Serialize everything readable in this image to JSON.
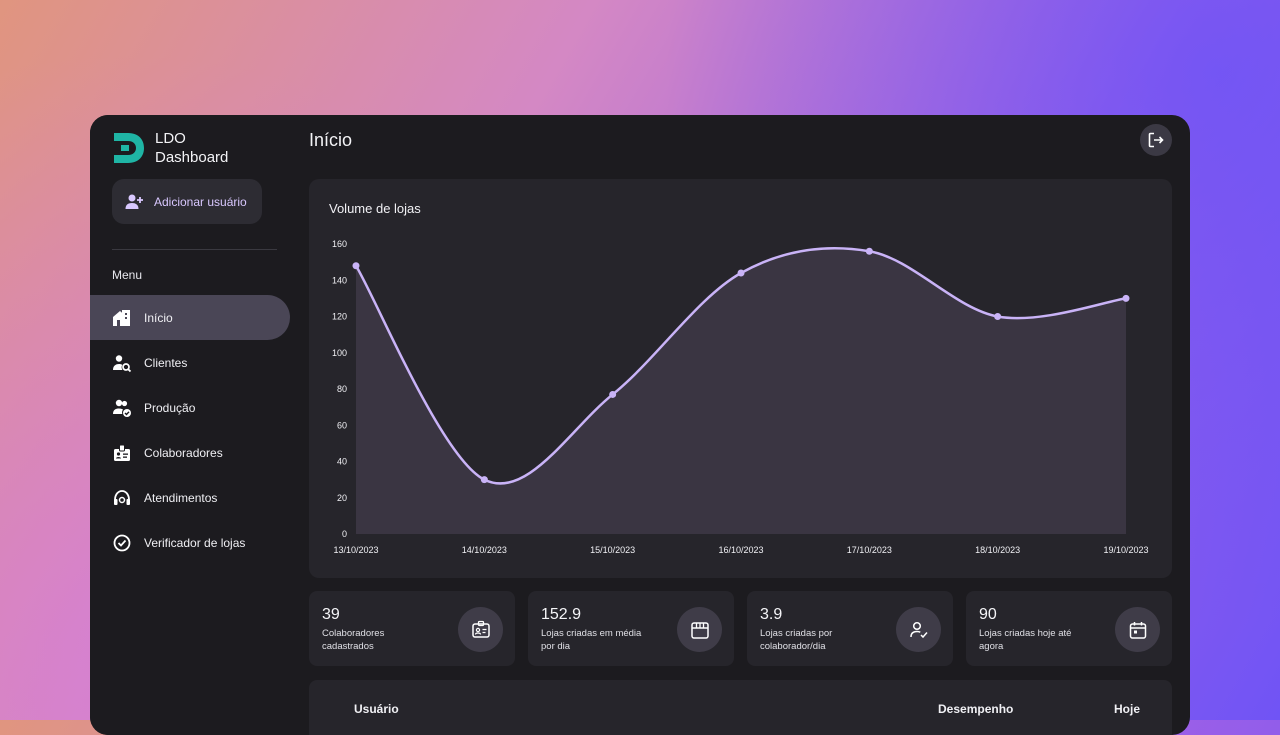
{
  "brand": {
    "line1": "LDO",
    "line2": "Dashboard"
  },
  "sidebar": {
    "add_user_label": "Adicionar usuário",
    "menu_title": "Menu",
    "items": [
      {
        "label": "Início",
        "icon": "home-icon",
        "active": true
      },
      {
        "label": "Clientes",
        "icon": "user-search-icon",
        "active": false
      },
      {
        "label": "Produção",
        "icon": "users-check-icon",
        "active": false
      },
      {
        "label": "Colaboradores",
        "icon": "badge-icon",
        "active": false
      },
      {
        "label": "Atendimentos",
        "icon": "headset-icon",
        "active": false
      },
      {
        "label": "Verificador de lojas",
        "icon": "check-circle-icon",
        "active": false
      }
    ]
  },
  "header": {
    "title": "Início",
    "logout_icon": "logout-icon"
  },
  "chart_title": "Volume de lojas",
  "chart_data": {
    "type": "area",
    "title": "Volume de lojas",
    "categories": [
      "13/10/2023",
      "14/10/2023",
      "15/10/2023",
      "16/10/2023",
      "17/10/2023",
      "18/10/2023",
      "19/10/2023"
    ],
    "values": [
      148,
      30,
      77,
      144,
      156,
      120,
      130
    ],
    "ylim": [
      0,
      160
    ],
    "yticks": [
      0,
      20,
      40,
      60,
      80,
      100,
      120,
      140,
      160
    ],
    "grid": false,
    "line_color": "#c9b3f7",
    "fill_color": "#3a3542"
  },
  "stats": [
    {
      "value": "39",
      "label": "Colaboradores cadastrados",
      "icon": "id-card-icon"
    },
    {
      "value": "152.9",
      "label": "Lojas criadas em média por dia",
      "icon": "store-icon"
    },
    {
      "value": "3.9",
      "label": "Lojas criadas por colaborador/dia",
      "icon": "user-check-icon"
    },
    {
      "value": "90",
      "label": "Lojas criadas hoje até agora",
      "icon": "calendar-icon"
    }
  ],
  "table": {
    "headers": [
      "Usuário",
      "Desempenho",
      "Hoje"
    ]
  },
  "colors": {
    "accent": "#c9b3f7",
    "brand": "#1fb5a5",
    "surface": "#26252b",
    "background": "#1c1b1f"
  }
}
